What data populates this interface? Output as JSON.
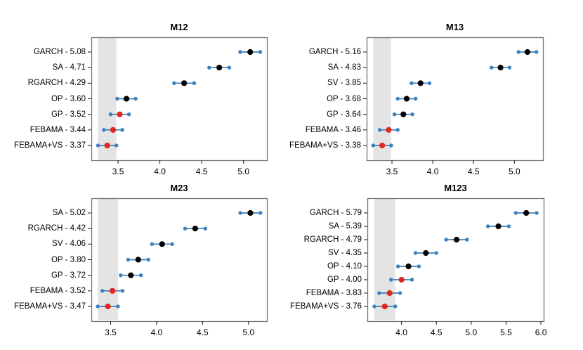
{
  "figure": {
    "background": "#ffffff"
  },
  "colors": {
    "interval_line": "#3d80bd",
    "interval_endpoint": "#3d80bd",
    "point_default": "#000000",
    "point_highlight": "#e3261e",
    "band_fill": "#e4e4e4",
    "box_border": "#737373",
    "tick_color": "#1a1a1a",
    "text_color": "#000000"
  },
  "chart_data": [
    {
      "type": "scatter",
      "subtype": "dot-interval-plot",
      "title": "M12",
      "xlabel": "",
      "ylabel": "",
      "xlim": [
        3.18,
        5.28
      ],
      "xticks": [
        3.5,
        4.0,
        4.5,
        5.0
      ],
      "grid": false,
      "band": {
        "from": 3.26,
        "to": 3.48
      },
      "rows": [
        {
          "label": "GARCH - 5.08",
          "method": "GARCH",
          "value": 5.08,
          "lo": 4.96,
          "hi": 5.2,
          "highlight": false
        },
        {
          "label": "SA - 4.71",
          "method": "SA",
          "value": 4.71,
          "lo": 4.59,
          "hi": 4.83,
          "highlight": false
        },
        {
          "label": "RGARCH - 4.29",
          "method": "RGARCH",
          "value": 4.29,
          "lo": 4.17,
          "hi": 4.41,
          "highlight": false
        },
        {
          "label": "OP - 3.60",
          "method": "OP",
          "value": 3.6,
          "lo": 3.49,
          "hi": 3.71,
          "highlight": false
        },
        {
          "label": "GP - 3.52",
          "method": "GP",
          "value": 3.52,
          "lo": 3.41,
          "hi": 3.63,
          "highlight": true
        },
        {
          "label": "FEBAMA - 3.44",
          "method": "FEBAMA",
          "value": 3.44,
          "lo": 3.33,
          "hi": 3.55,
          "highlight": true
        },
        {
          "label": "FEBAMA+VS - 3.37",
          "method": "FEBAMA+VS",
          "value": 3.37,
          "lo": 3.26,
          "hi": 3.48,
          "highlight": true
        }
      ]
    },
    {
      "type": "scatter",
      "subtype": "dot-interval-plot",
      "title": "M13",
      "xlabel": "",
      "ylabel": "",
      "xlim": [
        3.19,
        5.35
      ],
      "xticks": [
        3.5,
        4.0,
        4.5,
        5.0
      ],
      "grid": false,
      "band": {
        "from": 3.27,
        "to": 3.49
      },
      "rows": [
        {
          "label": "GARCH - 5.16",
          "method": "GARCH",
          "value": 5.16,
          "lo": 5.05,
          "hi": 5.27,
          "highlight": false
        },
        {
          "label": "SA - 4.83",
          "method": "SA",
          "value": 4.83,
          "lo": 4.72,
          "hi": 4.94,
          "highlight": false
        },
        {
          "label": "SV - 3.85",
          "method": "SV",
          "value": 3.85,
          "lo": 3.74,
          "hi": 3.96,
          "highlight": false
        },
        {
          "label": "OP - 3.68",
          "method": "OP",
          "value": 3.68,
          "lo": 3.57,
          "hi": 3.79,
          "highlight": false
        },
        {
          "label": "GP - 3.64",
          "method": "GP",
          "value": 3.64,
          "lo": 3.53,
          "hi": 3.75,
          "highlight": false
        },
        {
          "label": "FEBAMA - 3.46",
          "method": "FEBAMA",
          "value": 3.46,
          "lo": 3.35,
          "hi": 3.57,
          "highlight": true
        },
        {
          "label": "FEBAMA+VS - 3.38",
          "method": "FEBAMA+VS",
          "value": 3.38,
          "lo": 3.27,
          "hi": 3.49,
          "highlight": true
        }
      ]
    },
    {
      "type": "scatter",
      "subtype": "dot-interval-plot",
      "title": "M23",
      "xlabel": "",
      "ylabel": "",
      "xlim": [
        3.29,
        5.2
      ],
      "xticks": [
        3.5,
        4.0,
        4.5,
        5.0
      ],
      "grid": false,
      "band": {
        "from": 3.36,
        "to": 3.58
      },
      "rows": [
        {
          "label": "SA - 5.02",
          "method": "SA",
          "value": 5.02,
          "lo": 4.91,
          "hi": 5.13,
          "highlight": false
        },
        {
          "label": "RGARCH - 4.42",
          "method": "RGARCH",
          "value": 4.42,
          "lo": 4.31,
          "hi": 4.53,
          "highlight": false
        },
        {
          "label": "SV - 4.06",
          "method": "SV",
          "value": 4.06,
          "lo": 3.95,
          "hi": 4.17,
          "highlight": false
        },
        {
          "label": "OP - 3.80",
          "method": "OP",
          "value": 3.8,
          "lo": 3.69,
          "hi": 3.91,
          "highlight": false
        },
        {
          "label": "GP - 3.72",
          "method": "GP",
          "value": 3.72,
          "lo": 3.61,
          "hi": 3.83,
          "highlight": false
        },
        {
          "label": "FEBAMA - 3.52",
          "method": "FEBAMA",
          "value": 3.52,
          "lo": 3.41,
          "hi": 3.63,
          "highlight": true
        },
        {
          "label": "FEBAMA+VS - 3.47",
          "method": "FEBAMA+VS",
          "value": 3.47,
          "lo": 3.36,
          "hi": 3.58,
          "highlight": true
        }
      ]
    },
    {
      "type": "scatter",
      "subtype": "dot-interval-plot",
      "title": "M123",
      "xlabel": "",
      "ylabel": "",
      "xlim": [
        3.51,
        6.04
      ],
      "xticks": [
        4.0,
        4.5,
        5.0,
        5.5,
        6.0
      ],
      "grid": false,
      "band": {
        "from": 3.61,
        "to": 3.91
      },
      "rows": [
        {
          "label": "GARCH - 5.79",
          "method": "GARCH",
          "value": 5.79,
          "lo": 5.64,
          "hi": 5.94,
          "highlight": false
        },
        {
          "label": "SA - 5.39",
          "method": "SA",
          "value": 5.39,
          "lo": 5.24,
          "hi": 5.54,
          "highlight": false
        },
        {
          "label": "RGARCH - 4.79",
          "method": "RGARCH",
          "value": 4.79,
          "lo": 4.64,
          "hi": 4.94,
          "highlight": false
        },
        {
          "label": "SV - 4.35",
          "method": "SV",
          "value": 4.35,
          "lo": 4.2,
          "hi": 4.5,
          "highlight": false
        },
        {
          "label": "OP - 4.10",
          "method": "OP",
          "value": 4.1,
          "lo": 3.95,
          "hi": 4.25,
          "highlight": false
        },
        {
          "label": "GP - 4.00",
          "method": "GP",
          "value": 4.0,
          "lo": 3.85,
          "hi": 4.15,
          "highlight": true
        },
        {
          "label": "FEBAMA - 3.83",
          "method": "FEBAMA",
          "value": 3.83,
          "lo": 3.68,
          "hi": 3.98,
          "highlight": true
        },
        {
          "label": "FEBAMA+VS - 3.76",
          "method": "FEBAMA+VS",
          "value": 3.76,
          "lo": 3.61,
          "hi": 3.91,
          "highlight": true
        }
      ]
    }
  ]
}
